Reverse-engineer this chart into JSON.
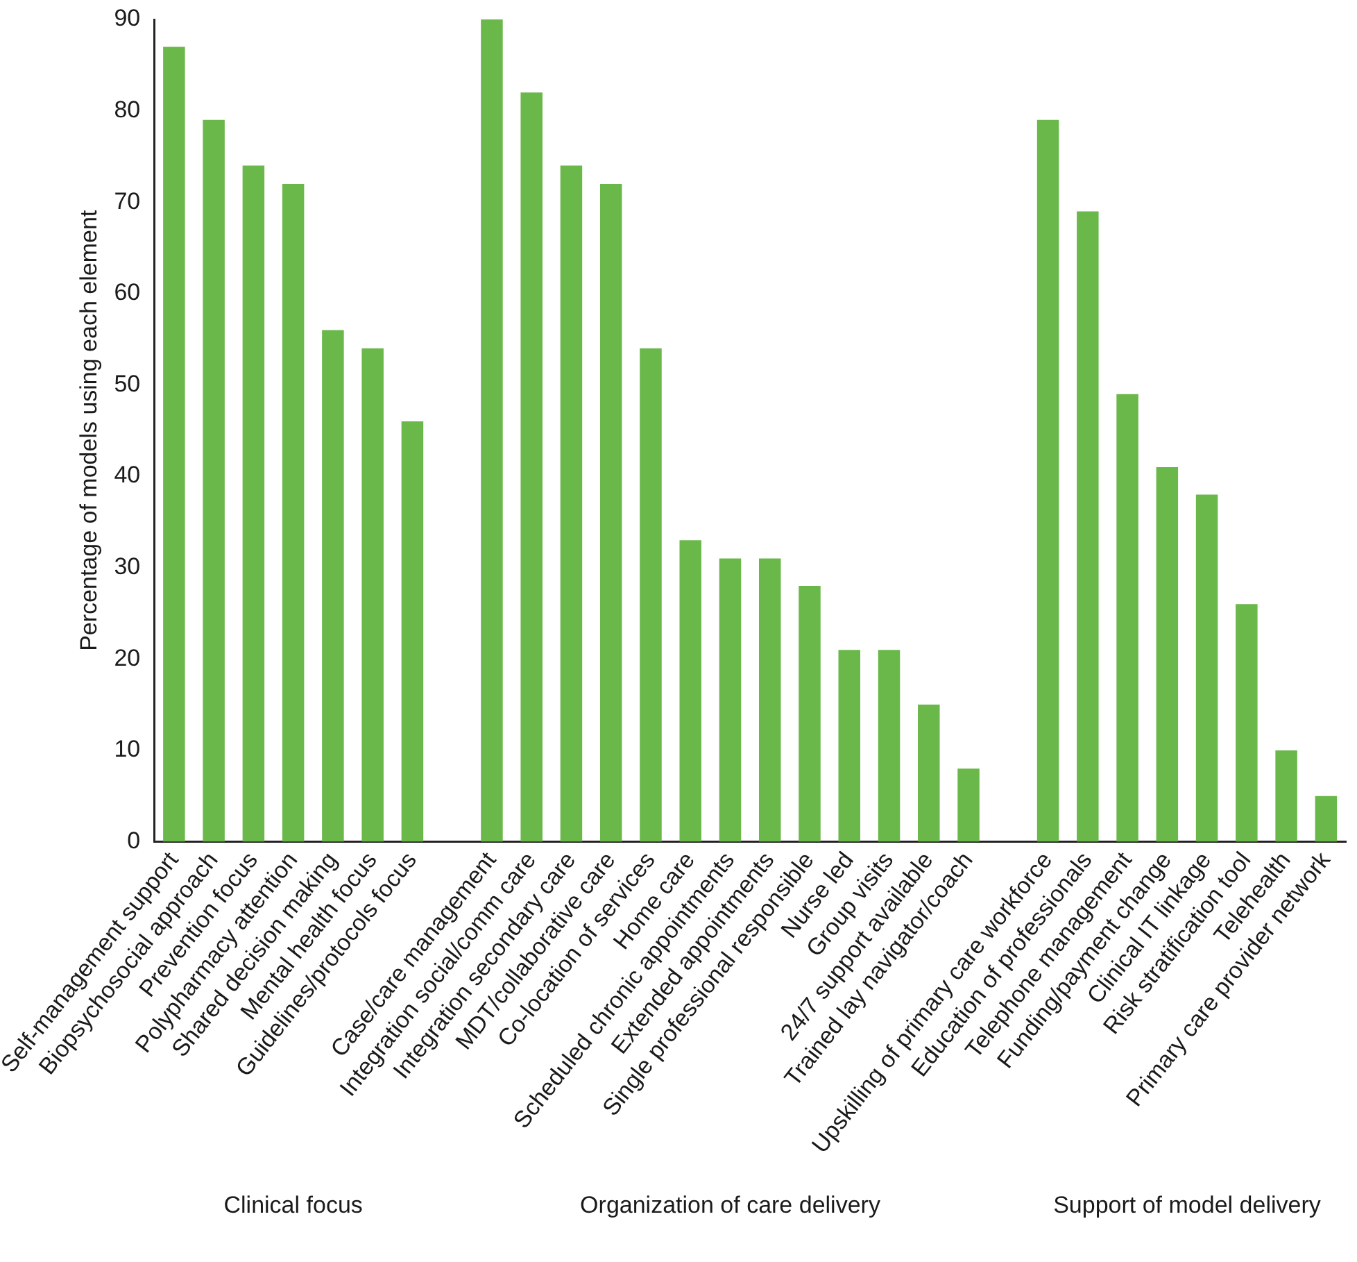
{
  "chart_data": {
    "type": "bar",
    "ylabel": "Percentage of models using each element",
    "categories": [
      "Self-management support",
      "Biopsychosocial approach",
      "Prevention focus",
      "Polypharmacy attention",
      "Shared decision making",
      "Mental health focus",
      "Guidelines/protocols focus",
      null,
      "Case/care management",
      "Integration social/comm care",
      "Integration secondary care",
      "MDT/collaborative care",
      "Co-location of services",
      "Home care",
      "Scheduled chronic appointments",
      "Extended appointments",
      "Single professional responsible",
      "Nurse led",
      "Group visits",
      "24/7 support available",
      "Trained lay navigator/coach",
      null,
      "Upskilling of primary care workforce",
      "Education of professionals",
      "Telephone management",
      "Funding/payment change",
      "Clinical IT linkage",
      "Risk stratification tool",
      "Telehealth",
      "Primary care provider network"
    ],
    "values": [
      87,
      79,
      74,
      72,
      56,
      54,
      46,
      null,
      90,
      82,
      74,
      72,
      54,
      33,
      31,
      31,
      28,
      21,
      21,
      15,
      8,
      null,
      79,
      69,
      49,
      41,
      38,
      26,
      10,
      5
    ],
    "color": "#6ab84a",
    "ylim": [
      0,
      90
    ],
    "yticks": [
      0,
      10,
      20,
      30,
      40,
      50,
      60,
      70,
      80,
      90
    ],
    "grid": false,
    "legend": false,
    "annotations": [
      "Clinical focus",
      "Organization of care delivery",
      "Support of model delivery"
    ]
  }
}
